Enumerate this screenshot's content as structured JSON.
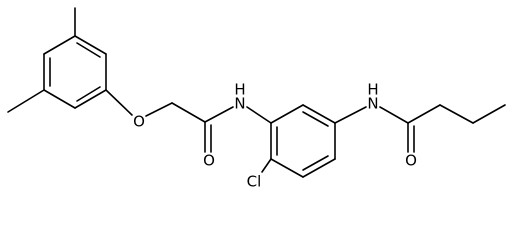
{
  "atoms": [
    {
      "label": "O"
    },
    {
      "label": "O"
    },
    {
      "label": "N",
      "h": "H"
    },
    {
      "label": "Cl"
    },
    {
      "label": "N",
      "h": "H"
    },
    {
      "label": "O"
    }
  ]
}
